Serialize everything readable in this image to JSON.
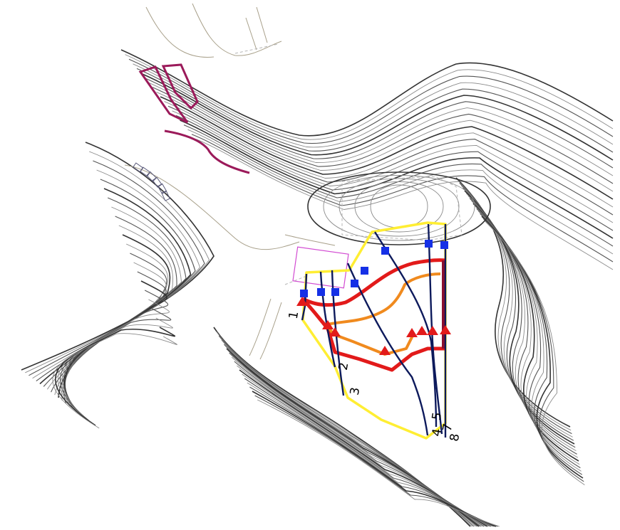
{
  "map": {
    "profile_labels": [
      "1",
      "2",
      "3",
      "4",
      "5",
      "7",
      "8"
    ],
    "colors": {
      "contour": "#555555",
      "boundary": "#ffee33",
      "red_line": "#e21a1a",
      "orange_line": "#f08a1e",
      "section_line": "#0d1a5c",
      "square_marker": "#1530e6",
      "triangle_marker": "#e21a1a",
      "magenta_feature": "#9b1a5a",
      "pink_rect": "#d24bd2"
    },
    "marker_types": [
      "square",
      "triangle"
    ]
  }
}
